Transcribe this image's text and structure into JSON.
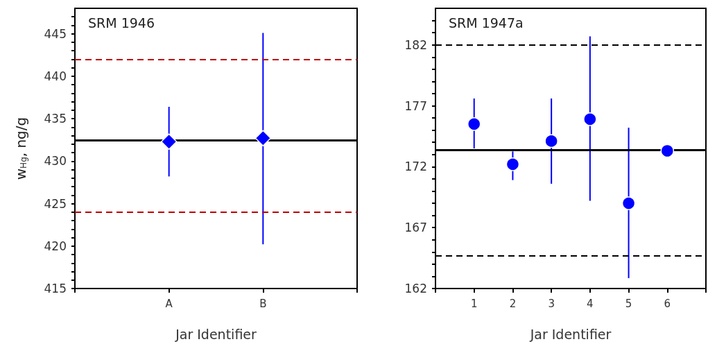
{
  "chart_data": [
    {
      "type": "scatter",
      "title": "SRM 1946",
      "xlabel": "Jar Identifier",
      "ylabel": "w$_{Hg}$, ng/g",
      "categories": [
        "A",
        "B"
      ],
      "series": [
        {
          "color": "#0000ff",
          "values": [
            432.3,
            432.7
          ],
          "errors": [
            [
              428.2,
              436.4
            ],
            [
              420.2,
              445.1
            ]
          ]
        }
      ],
      "marker": "diamond",
      "ylim": [
        415,
        448
      ],
      "yticks": [
        415,
        {
          "value": 416,
          "label": null
        },
        {
          "value": 417,
          "label": null
        },
        {
          "value": 418,
          "label": null
        },
        {
          "value": 419,
          "label": null
        },
        420,
        {
          "value": 421,
          "label": null
        },
        {
          "value": 422,
          "label": null
        },
        {
          "value": 423,
          "label": null
        },
        {
          "value": 424,
          "label": null
        },
        425,
        {
          "value": 426,
          "label": null
        },
        {
          "value": 427,
          "label": null
        },
        {
          "value": 428,
          "label": null
        },
        {
          "value": 429,
          "label": null
        },
        430,
        {
          "value": 431,
          "label": null
        },
        {
          "value": 432,
          "label": null
        },
        {
          "value": 433,
          "label": null
        },
        {
          "value": 434,
          "label": null
        },
        435,
        {
          "value": 436,
          "label": null
        },
        {
          "value": 437,
          "label": null
        },
        {
          "value": 438,
          "label": null
        },
        {
          "value": 439,
          "label": null
        },
        440,
        {
          "value": 441,
          "label": null
        },
        {
          "value": 442,
          "label": null
        },
        {
          "value": 443,
          "label": null
        },
        {
          "value": 444,
          "label": null
        },
        445,
        {
          "value": 446,
          "label": null
        },
        {
          "value": 447,
          "label": null
        }
      ],
      "ref_lines": [
        {
          "axis": "y",
          "value": 432.5,
          "color": "#000000",
          "line_style": "solid"
        },
        {
          "axis": "y",
          "value": 442,
          "color": "#c00000",
          "line_style": "dashed"
        },
        {
          "axis": "y",
          "value": 424,
          "color": "#c00000",
          "line_style": "dashed"
        }
      ]
    },
    {
      "type": "scatter",
      "title": "SRM 1947a",
      "xlabel": "Jar Identifier",
      "categories": [
        "1",
        "2",
        "3",
        "4",
        "5",
        "6"
      ],
      "series": [
        {
          "color": "#0000ff",
          "values": [
            175.5,
            172.2,
            174.1,
            175.9,
            169.0,
            173.3
          ],
          "errors": [
            [
              173.5,
              177.6
            ],
            [
              170.9,
              173.25
            ],
            [
              170.6,
              177.6
            ],
            [
              169.2,
              182.7
            ],
            [
              162.85,
              175.2
            ],
            null
          ]
        }
      ],
      "marker": "circle",
      "ylim": [
        162,
        185
      ],
      "yticks": [
        162,
        {
          "value": 163,
          "label": null
        },
        {
          "value": 164,
          "label": null
        },
        {
          "value": 165,
          "label": null
        },
        {
          "value": 166,
          "label": null
        },
        167,
        {
          "value": 168,
          "label": null
        },
        {
          "value": 169,
          "label": null
        },
        {
          "value": 170,
          "label": null
        },
        {
          "value": 171,
          "label": null
        },
        172,
        {
          "value": 173,
          "label": null
        },
        {
          "value": 174,
          "label": null
        },
        {
          "value": 175,
          "label": null
        },
        {
          "value": 176,
          "label": null
        },
        177,
        {
          "value": 178,
          "label": null
        },
        {
          "value": 179,
          "label": null
        },
        {
          "value": 180,
          "label": null
        },
        {
          "value": 181,
          "label": null
        },
        182,
        {
          "value": 183,
          "label": null
        },
        {
          "value": 184,
          "label": null
        }
      ],
      "ref_lines": [
        {
          "axis": "y",
          "value": 173.35,
          "color": "#000000",
          "line_style": "solid"
        },
        {
          "axis": "y",
          "value": 182,
          "color": "#000000",
          "line_style": "dashed"
        },
        {
          "axis": "y",
          "value": 164.7,
          "color": "#000000",
          "line_style": "dashed"
        }
      ]
    }
  ]
}
